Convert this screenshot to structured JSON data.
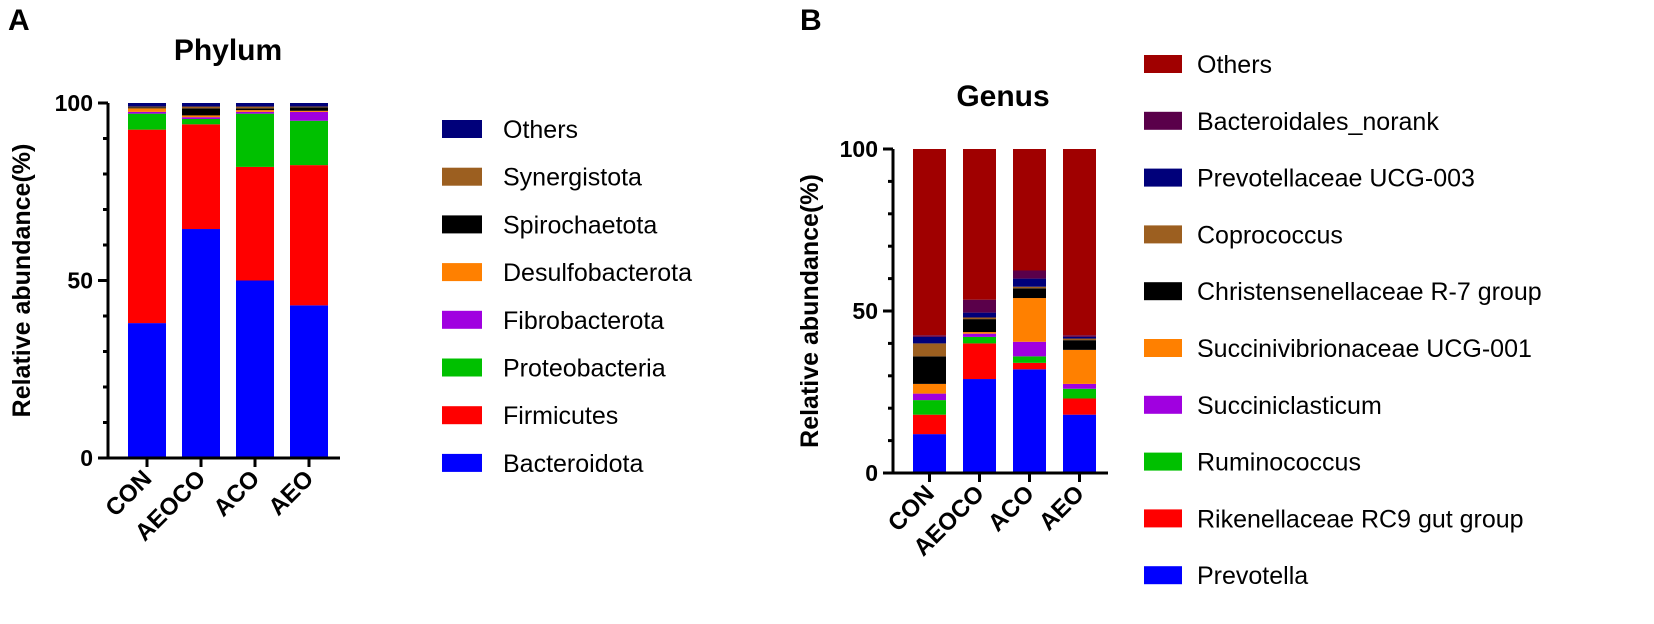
{
  "chart_data": [
    {
      "panel": "A",
      "type": "bar",
      "stacked": true,
      "title": "Phylum",
      "ylabel": "Relative abundance(%)",
      "xlabel": "",
      "ylim": [
        0,
        100
      ],
      "yticks": [
        0,
        50,
        100
      ],
      "categories": [
        "CON",
        "AEOCO",
        "ACO",
        "AEO"
      ],
      "series": [
        {
          "name": "Bacteroidota",
          "color": "#0000ff",
          "values": [
            38,
            64.5,
            50,
            43
          ]
        },
        {
          "name": "Firmicutes",
          "color": "#ff0000",
          "values": [
            54.5,
            29.5,
            32,
            39.5
          ]
        },
        {
          "name": "Proteobacteria",
          "color": "#00c000",
          "values": [
            4.5,
            1.5,
            15,
            12.5
          ]
        },
        {
          "name": "Fibrobacterota",
          "color": "#a000e0",
          "values": [
            0.5,
            0.5,
            0.5,
            2.5
          ]
        },
        {
          "name": "Desulfobacterota",
          "color": "#ff8000",
          "values": [
            1,
            0.5,
            0.5,
            0.3
          ]
        },
        {
          "name": "Spirochaetota",
          "color": "#000000",
          "values": [
            0.3,
            2,
            0.5,
            1
          ]
        },
        {
          "name": "Synergistota",
          "color": "#9c5f20",
          "values": [
            0.2,
            0.5,
            0.5,
            0.2
          ]
        },
        {
          "name": "Others",
          "color": "#00007a",
          "values": [
            1,
            1,
            1,
            1
          ]
        }
      ],
      "legend_order": [
        "Others",
        "Synergistota",
        "Spirochaetota",
        "Desulfobacterota",
        "Fibrobacterota",
        "Proteobacteria",
        "Firmicutes",
        "Bacteroidota"
      ]
    },
    {
      "panel": "B",
      "type": "bar",
      "stacked": true,
      "title": "Genus",
      "ylabel": "Relative abundance(%)",
      "xlabel": "",
      "ylim": [
        0,
        100
      ],
      "yticks": [
        0,
        50,
        100
      ],
      "categories": [
        "CON",
        "AEOCO",
        "ACO",
        "AEO"
      ],
      "series": [
        {
          "name": "Prevotella",
          "color": "#0000ff",
          "values": [
            12,
            29,
            32,
            18
          ]
        },
        {
          "name": "Rikenellaceae RC9 gut group",
          "color": "#ff0000",
          "values": [
            6,
            11,
            2,
            5
          ]
        },
        {
          "name": "Ruminococcus",
          "color": "#00c000",
          "values": [
            4.5,
            2,
            2,
            3
          ]
        },
        {
          "name": "Succiniclasticum",
          "color": "#a000e0",
          "values": [
            2,
            1,
            4.5,
            1.5
          ]
        },
        {
          "name": "Succinivibrionaceae UCG-001",
          "color": "#ff8000",
          "values": [
            3,
            0.5,
            13.5,
            10.5
          ]
        },
        {
          "name": "Christensenellaceae R-7 group",
          "color": "#000000",
          "values": [
            8.5,
            4,
            3,
            3
          ]
        },
        {
          "name": "Coprococcus",
          "color": "#9c5f20",
          "values": [
            4,
            0.5,
            0.5,
            0.5
          ]
        },
        {
          "name": "Prevotellaceae UCG-003",
          "color": "#00007a",
          "values": [
            2,
            1.5,
            2.5,
            0.5
          ]
        },
        {
          "name": "Bacteroidales_norank",
          "color": "#5a004a",
          "values": [
            0.5,
            4,
            2.5,
            0.5
          ]
        },
        {
          "name": "Others",
          "color": "#a00000",
          "values": [
            57.5,
            46.5,
            37.5,
            57.5
          ]
        }
      ],
      "legend_order": [
        "Others",
        "Bacteroidales_norank",
        "Prevotellaceae UCG-003",
        "Coprococcus",
        "Christensenellaceae R-7 group",
        "Succinivibrionaceae UCG-001",
        "Succiniclasticum",
        "Ruminococcus",
        "Rikenellaceae RC9 gut group",
        "Prevotella"
      ]
    }
  ]
}
